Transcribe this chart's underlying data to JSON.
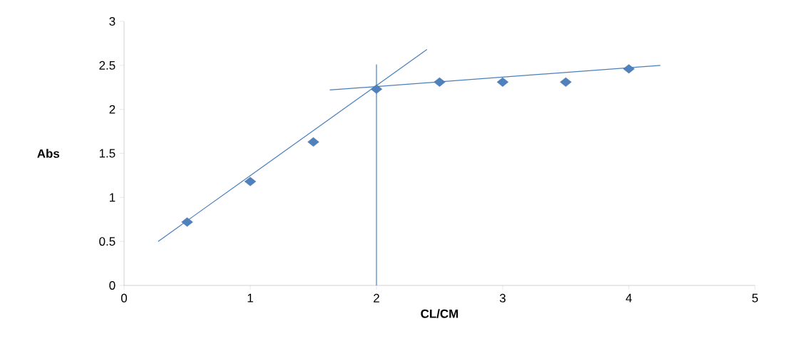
{
  "chart_data": {
    "type": "scatter",
    "xlabel": "CL/CM",
    "ylabel": "Abs",
    "grid": false,
    "xlim": [
      0,
      5
    ],
    "ylim": [
      0,
      3
    ],
    "xticks": [
      0,
      1,
      2,
      3,
      4,
      5
    ],
    "yticks": [
      0,
      0.5,
      1,
      1.5,
      2,
      2.5,
      3
    ],
    "series": [
      {
        "marker": "diamond",
        "color": "#4f81bd",
        "x": [
          0.5,
          1,
          1.5,
          2,
          2.5,
          3,
          3.5,
          4
        ],
        "values": [
          0.72,
          1.18,
          1.63,
          2.23,
          2.31,
          2.31,
          2.31,
          2.46
        ]
      },
      {
        "type": "line",
        "color": "#4a7ebb",
        "x": [
          0.27,
          2.4
        ],
        "values": [
          0.5,
          2.68
        ]
      },
      {
        "type": "line",
        "color": "#4a7ebb",
        "x": [
          1.63,
          4.25
        ],
        "values": [
          2.22,
          2.5
        ]
      },
      {
        "type": "line",
        "color": "#4a7ebb",
        "x": [
          2,
          2
        ],
        "values": [
          0,
          2.51
        ]
      }
    ]
  }
}
